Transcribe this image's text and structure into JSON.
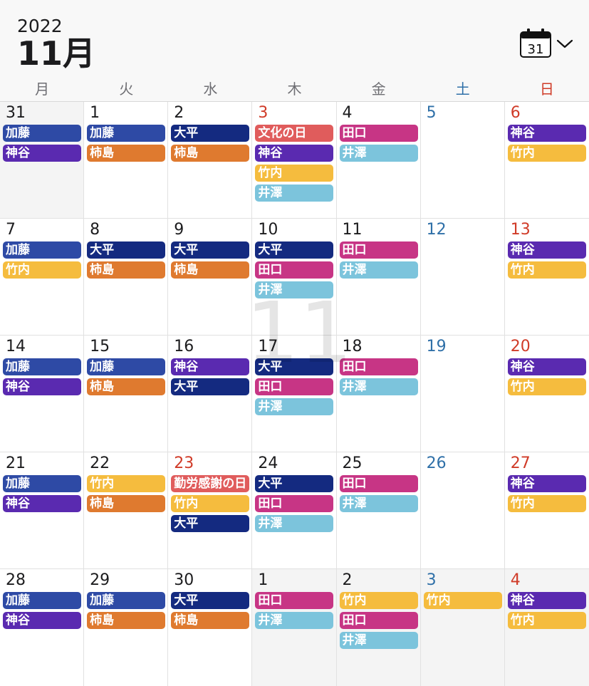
{
  "header": {
    "year": "2022",
    "month": "11月",
    "calendar_icon_date": "31"
  },
  "weekdays": [
    "月",
    "火",
    "水",
    "木",
    "金",
    "土",
    "日"
  ],
  "watermark": "11",
  "colors": {
    "kato": "#2e4aa5",
    "kamiya": "#5a2ab0",
    "kakishima": "#df7a2f",
    "ohira": "#142a80",
    "takeuchi": "#f5bc3e",
    "taguchi": "#c73585",
    "isawa": "#7cc4dc",
    "holiday": "#e05c5c"
  },
  "weeks": [
    [
      {
        "day": "31",
        "other": true,
        "type": "",
        "events": [
          {
            "t": "加藤",
            "c": "kato"
          },
          {
            "t": "神谷",
            "c": "kamiya"
          }
        ]
      },
      {
        "day": "1",
        "type": "",
        "events": [
          {
            "t": "加藤",
            "c": "kato"
          },
          {
            "t": "柿島",
            "c": "kakishima"
          }
        ]
      },
      {
        "day": "2",
        "type": "",
        "events": [
          {
            "t": "大平",
            "c": "ohira"
          },
          {
            "t": "柿島",
            "c": "kakishima"
          }
        ]
      },
      {
        "day": "3",
        "type": "red",
        "events": [
          {
            "t": "文化の日",
            "c": "holiday"
          },
          {
            "t": "神谷",
            "c": "kamiya"
          },
          {
            "t": "竹内",
            "c": "takeuchi"
          },
          {
            "t": "井澤",
            "c": "isawa"
          }
        ]
      },
      {
        "day": "4",
        "type": "",
        "events": [
          {
            "t": "田口",
            "c": "taguchi"
          },
          {
            "t": "井澤",
            "c": "isawa"
          }
        ]
      },
      {
        "day": "5",
        "type": "blue",
        "events": []
      },
      {
        "day": "6",
        "type": "red",
        "events": [
          {
            "t": "神谷",
            "c": "kamiya"
          },
          {
            "t": "竹内",
            "c": "takeuchi"
          }
        ]
      }
    ],
    [
      {
        "day": "7",
        "type": "",
        "events": [
          {
            "t": "加藤",
            "c": "kato"
          },
          {
            "t": "竹内",
            "c": "takeuchi"
          }
        ]
      },
      {
        "day": "8",
        "type": "",
        "events": [
          {
            "t": "大平",
            "c": "ohira"
          },
          {
            "t": "柿島",
            "c": "kakishima"
          }
        ]
      },
      {
        "day": "9",
        "type": "",
        "events": [
          {
            "t": "大平",
            "c": "ohira"
          },
          {
            "t": "柿島",
            "c": "kakishima"
          }
        ]
      },
      {
        "day": "10",
        "type": "",
        "events": [
          {
            "t": "大平",
            "c": "ohira"
          },
          {
            "t": "田口",
            "c": "taguchi"
          },
          {
            "t": "井澤",
            "c": "isawa"
          }
        ]
      },
      {
        "day": "11",
        "type": "",
        "events": [
          {
            "t": "田口",
            "c": "taguchi"
          },
          {
            "t": "井澤",
            "c": "isawa"
          }
        ]
      },
      {
        "day": "12",
        "type": "blue",
        "events": []
      },
      {
        "day": "13",
        "type": "red",
        "events": [
          {
            "t": "神谷",
            "c": "kamiya"
          },
          {
            "t": "竹内",
            "c": "takeuchi"
          }
        ]
      }
    ],
    [
      {
        "day": "14",
        "type": "",
        "events": [
          {
            "t": "加藤",
            "c": "kato"
          },
          {
            "t": "神谷",
            "c": "kamiya"
          }
        ]
      },
      {
        "day": "15",
        "type": "",
        "events": [
          {
            "t": "加藤",
            "c": "kato"
          },
          {
            "t": "柿島",
            "c": "kakishima"
          }
        ]
      },
      {
        "day": "16",
        "type": "",
        "events": [
          {
            "t": "神谷",
            "c": "kamiya"
          },
          {
            "t": "大平",
            "c": "ohira"
          }
        ]
      },
      {
        "day": "17",
        "type": "",
        "events": [
          {
            "t": "大平",
            "c": "ohira"
          },
          {
            "t": "田口",
            "c": "taguchi"
          },
          {
            "t": "井澤",
            "c": "isawa"
          }
        ]
      },
      {
        "day": "18",
        "type": "",
        "events": [
          {
            "t": "田口",
            "c": "taguchi"
          },
          {
            "t": "井澤",
            "c": "isawa"
          }
        ]
      },
      {
        "day": "19",
        "type": "blue",
        "events": []
      },
      {
        "day": "20",
        "type": "red",
        "events": [
          {
            "t": "神谷",
            "c": "kamiya"
          },
          {
            "t": "竹内",
            "c": "takeuchi"
          }
        ]
      }
    ],
    [
      {
        "day": "21",
        "type": "",
        "events": [
          {
            "t": "加藤",
            "c": "kato"
          },
          {
            "t": "神谷",
            "c": "kamiya"
          }
        ]
      },
      {
        "day": "22",
        "type": "",
        "events": [
          {
            "t": "竹内",
            "c": "takeuchi"
          },
          {
            "t": "柿島",
            "c": "kakishima"
          }
        ]
      },
      {
        "day": "23",
        "type": "red",
        "events": [
          {
            "t": "勤労感謝の日",
            "c": "holiday"
          },
          {
            "t": "竹内",
            "c": "takeuchi"
          },
          {
            "t": "大平",
            "c": "ohira"
          }
        ]
      },
      {
        "day": "24",
        "type": "",
        "events": [
          {
            "t": "大平",
            "c": "ohira"
          },
          {
            "t": "田口",
            "c": "taguchi"
          },
          {
            "t": "井澤",
            "c": "isawa"
          }
        ]
      },
      {
        "day": "25",
        "type": "",
        "events": [
          {
            "t": "田口",
            "c": "taguchi"
          },
          {
            "t": "井澤",
            "c": "isawa"
          }
        ]
      },
      {
        "day": "26",
        "type": "blue",
        "events": []
      },
      {
        "day": "27",
        "type": "red",
        "events": [
          {
            "t": "神谷",
            "c": "kamiya"
          },
          {
            "t": "竹内",
            "c": "takeuchi"
          }
        ]
      }
    ],
    [
      {
        "day": "28",
        "type": "",
        "events": [
          {
            "t": "加藤",
            "c": "kato"
          },
          {
            "t": "神谷",
            "c": "kamiya"
          }
        ]
      },
      {
        "day": "29",
        "type": "",
        "events": [
          {
            "t": "加藤",
            "c": "kato"
          },
          {
            "t": "柿島",
            "c": "kakishima"
          }
        ]
      },
      {
        "day": "30",
        "type": "",
        "events": [
          {
            "t": "大平",
            "c": "ohira"
          },
          {
            "t": "柿島",
            "c": "kakishima"
          }
        ]
      },
      {
        "day": "1",
        "other": true,
        "type": "",
        "events": [
          {
            "t": "田口",
            "c": "taguchi"
          },
          {
            "t": "井澤",
            "c": "isawa"
          }
        ]
      },
      {
        "day": "2",
        "other": true,
        "type": "",
        "events": [
          {
            "t": "竹内",
            "c": "takeuchi"
          },
          {
            "t": "田口",
            "c": "taguchi"
          },
          {
            "t": "井澤",
            "c": "isawa"
          }
        ]
      },
      {
        "day": "3",
        "other": true,
        "type": "blue",
        "events": [
          {
            "t": "竹内",
            "c": "takeuchi"
          }
        ]
      },
      {
        "day": "4",
        "other": true,
        "type": "red",
        "events": [
          {
            "t": "神谷",
            "c": "kamiya"
          },
          {
            "t": "竹内",
            "c": "takeuchi"
          }
        ]
      }
    ]
  ]
}
